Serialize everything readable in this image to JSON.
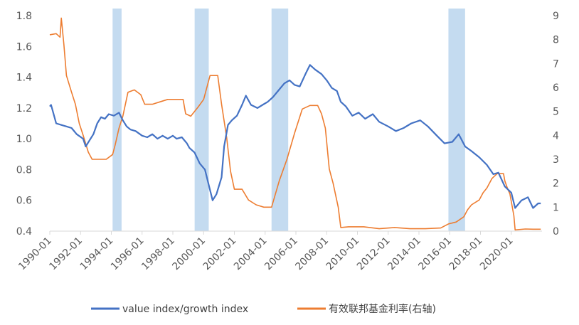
{
  "chart_data": {
    "type": "line",
    "title": "",
    "legend_position": "bottom",
    "grid": false,
    "x_axis": {
      "range": [
        "1990-01",
        "2021-12"
      ],
      "tick_labels": [
        "1990-01",
        "1992-01",
        "1994-01",
        "1996-01",
        "1998-01",
        "2000-01",
        "2002-01",
        "2004-01",
        "2006-01",
        "2008-01",
        "2010-01",
        "2012-01",
        "2014-01",
        "2016-01",
        "2018-01",
        "2020-01"
      ]
    },
    "y_left": {
      "range": [
        0.4,
        1.8
      ],
      "tick_labels": [
        "0.4",
        "0.6",
        "0.8",
        "1.0",
        "1.2",
        "1.4",
        "1.6",
        "1.8"
      ]
    },
    "y_right": {
      "range": [
        0,
        9
      ],
      "tick_labels": [
        "0",
        "1",
        "2",
        "3",
        "4",
        "5",
        "6",
        "7",
        "8",
        "9"
      ]
    },
    "shaded_periods": [
      {
        "start": "1994-02",
        "end": "1994-09"
      },
      {
        "start": "1999-06",
        "end": "2000-05"
      },
      {
        "start": "2004-06",
        "end": "2005-07"
      },
      {
        "start": "2015-12",
        "end": "2017-01"
      }
    ],
    "series": [
      {
        "name": "value index/growth index",
        "axis": "left",
        "color": "#4472C4",
        "points": [
          [
            "1990-01",
            1.21
          ],
          [
            "1990-02",
            1.22
          ],
          [
            "1990-06",
            1.1
          ],
          [
            "1990-10",
            1.09
          ],
          [
            "1991-02",
            1.08
          ],
          [
            "1991-06",
            1.07
          ],
          [
            "1991-10",
            1.03
          ],
          [
            "1992-03",
            1.0
          ],
          [
            "1992-05",
            0.95
          ],
          [
            "1992-08",
            0.99
          ],
          [
            "1992-11",
            1.03
          ],
          [
            "1993-02",
            1.1
          ],
          [
            "1993-05",
            1.14
          ],
          [
            "1993-08",
            1.13
          ],
          [
            "1993-11",
            1.16
          ],
          [
            "1994-03",
            1.15
          ],
          [
            "1994-07",
            1.17
          ],
          [
            "1994-10",
            1.12
          ],
          [
            "1995-01",
            1.08
          ],
          [
            "1995-04",
            1.06
          ],
          [
            "1995-08",
            1.05
          ],
          [
            "1996-01",
            1.02
          ],
          [
            "1996-05",
            1.01
          ],
          [
            "1996-09",
            1.03
          ],
          [
            "1997-01",
            1.0
          ],
          [
            "1997-05",
            1.02
          ],
          [
            "1997-09",
            1.0
          ],
          [
            "1998-01",
            1.02
          ],
          [
            "1998-04",
            1.0
          ],
          [
            "1998-08",
            1.01
          ],
          [
            "1998-12",
            0.97
          ],
          [
            "1999-02",
            0.94
          ],
          [
            "1999-06",
            0.91
          ],
          [
            "1999-10",
            0.84
          ],
          [
            "2000-02",
            0.8
          ],
          [
            "2000-05",
            0.7
          ],
          [
            "2000-08",
            0.6
          ],
          [
            "2000-11",
            0.64
          ],
          [
            "2001-03",
            0.75
          ],
          [
            "2001-05",
            0.95
          ],
          [
            "2001-08",
            1.09
          ],
          [
            "2001-11",
            1.12
          ],
          [
            "2002-03",
            1.15
          ],
          [
            "2002-07",
            1.22
          ],
          [
            "2002-10",
            1.28
          ],
          [
            "2003-02",
            1.22
          ],
          [
            "2003-07",
            1.2
          ],
          [
            "2003-11",
            1.22
          ],
          [
            "2004-03",
            1.24
          ],
          [
            "2004-07",
            1.27
          ],
          [
            "2004-11",
            1.31
          ],
          [
            "2005-04",
            1.36
          ],
          [
            "2005-08",
            1.38
          ],
          [
            "2005-12",
            1.35
          ],
          [
            "2006-04",
            1.34
          ],
          [
            "2006-09",
            1.43
          ],
          [
            "2006-12",
            1.48
          ],
          [
            "2007-04",
            1.45
          ],
          [
            "2007-09",
            1.42
          ],
          [
            "2008-01",
            1.38
          ],
          [
            "2008-05",
            1.33
          ],
          [
            "2008-09",
            1.31
          ],
          [
            "2008-12",
            1.24
          ],
          [
            "2009-04",
            1.21
          ],
          [
            "2009-09",
            1.15
          ],
          [
            "2010-02",
            1.17
          ],
          [
            "2010-07",
            1.13
          ],
          [
            "2011-01",
            1.16
          ],
          [
            "2011-06",
            1.11
          ],
          [
            "2012-01",
            1.08
          ],
          [
            "2012-07",
            1.05
          ],
          [
            "2013-01",
            1.07
          ],
          [
            "2013-07",
            1.1
          ],
          [
            "2014-02",
            1.12
          ],
          [
            "2014-08",
            1.08
          ],
          [
            "2015-03",
            1.02
          ],
          [
            "2015-09",
            0.97
          ],
          [
            "2016-03",
            0.98
          ],
          [
            "2016-08",
            1.03
          ],
          [
            "2017-01",
            0.95
          ],
          [
            "2017-06",
            0.92
          ],
          [
            "2017-12",
            0.88
          ],
          [
            "2018-06",
            0.83
          ],
          [
            "2018-11",
            0.77
          ],
          [
            "2019-03",
            0.78
          ],
          [
            "2019-08",
            0.69
          ],
          [
            "2020-01",
            0.65
          ],
          [
            "2020-04",
            0.55
          ],
          [
            "2020-09",
            0.6
          ],
          [
            "2021-02",
            0.62
          ],
          [
            "2021-06",
            0.55
          ],
          [
            "2021-10",
            0.58
          ],
          [
            "2021-12",
            0.58
          ]
        ]
      },
      {
        "name": "有效联邦基金利率(右轴)",
        "axis": "right",
        "color": "#ED7D31",
        "points": [
          [
            "1990-01",
            8.2
          ],
          [
            "1990-06",
            8.25
          ],
          [
            "1990-09",
            8.1
          ],
          [
            "1990-10",
            8.9
          ],
          [
            "1990-12",
            7.8
          ],
          [
            "1991-02",
            6.5
          ],
          [
            "1991-06",
            5.8
          ],
          [
            "1991-09",
            5.3
          ],
          [
            "1991-12",
            4.5
          ],
          [
            "1992-03",
            4.0
          ],
          [
            "1992-07",
            3.3
          ],
          [
            "1992-10",
            3.0
          ],
          [
            "1993-03",
            3.0
          ],
          [
            "1993-09",
            3.0
          ],
          [
            "1994-02",
            3.2
          ],
          [
            "1994-04",
            3.6
          ],
          [
            "1994-07",
            4.3
          ],
          [
            "1994-10",
            4.8
          ],
          [
            "1995-02",
            5.8
          ],
          [
            "1995-07",
            5.9
          ],
          [
            "1995-12",
            5.7
          ],
          [
            "1996-03",
            5.3
          ],
          [
            "1996-09",
            5.3
          ],
          [
            "1997-03",
            5.4
          ],
          [
            "1997-09",
            5.5
          ],
          [
            "1998-03",
            5.5
          ],
          [
            "1998-09",
            5.5
          ],
          [
            "1998-11",
            4.9
          ],
          [
            "1999-03",
            4.8
          ],
          [
            "1999-09",
            5.2
          ],
          [
            "2000-01",
            5.5
          ],
          [
            "2000-06",
            6.5
          ],
          [
            "2000-12",
            6.5
          ],
          [
            "2001-03",
            5.3
          ],
          [
            "2001-07",
            3.9
          ],
          [
            "2001-10",
            2.5
          ],
          [
            "2002-01",
            1.75
          ],
          [
            "2002-07",
            1.75
          ],
          [
            "2002-12",
            1.3
          ],
          [
            "2003-06",
            1.1
          ],
          [
            "2003-12",
            1.0
          ],
          [
            "2004-06",
            1.0
          ],
          [
            "2004-12",
            2.1
          ],
          [
            "2005-06",
            3.0
          ],
          [
            "2005-12",
            4.1
          ],
          [
            "2006-06",
            5.1
          ],
          [
            "2006-12",
            5.25
          ],
          [
            "2007-06",
            5.25
          ],
          [
            "2007-09",
            4.9
          ],
          [
            "2007-12",
            4.3
          ],
          [
            "2008-03",
            2.6
          ],
          [
            "2008-06",
            2.0
          ],
          [
            "2008-10",
            1.0
          ],
          [
            "2008-12",
            0.15
          ],
          [
            "2009-06",
            0.18
          ],
          [
            "2010-06",
            0.18
          ],
          [
            "2011-06",
            0.1
          ],
          [
            "2012-06",
            0.15
          ],
          [
            "2013-06",
            0.1
          ],
          [
            "2014-06",
            0.1
          ],
          [
            "2015-06",
            0.13
          ],
          [
            "2015-12",
            0.3
          ],
          [
            "2016-06",
            0.38
          ],
          [
            "2016-12",
            0.6
          ],
          [
            "2017-03",
            0.9
          ],
          [
            "2017-06",
            1.1
          ],
          [
            "2017-12",
            1.3
          ],
          [
            "2018-03",
            1.6
          ],
          [
            "2018-06",
            1.8
          ],
          [
            "2018-10",
            2.2
          ],
          [
            "2019-02",
            2.4
          ],
          [
            "2019-07",
            2.4
          ],
          [
            "2019-08",
            2.1
          ],
          [
            "2019-10",
            1.8
          ],
          [
            "2019-12",
            1.55
          ],
          [
            "2020-03",
            0.65
          ],
          [
            "2020-04",
            0.05
          ],
          [
            "2020-12",
            0.09
          ],
          [
            "2021-06",
            0.08
          ],
          [
            "2021-12",
            0.08
          ]
        ]
      }
    ]
  }
}
